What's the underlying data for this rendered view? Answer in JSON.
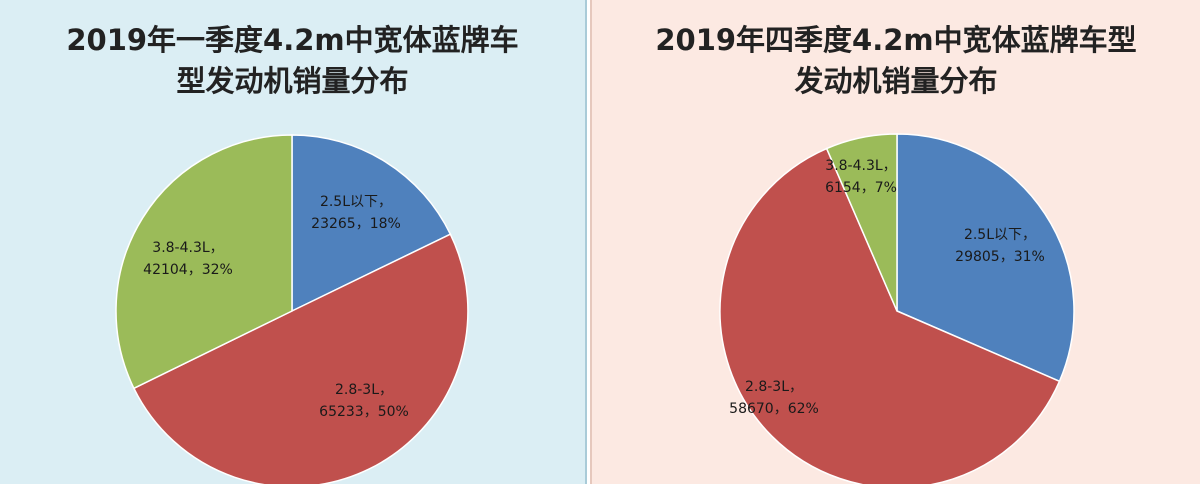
{
  "colors": {
    "blue": "#4f81bd",
    "red": "#c0504d",
    "green": "#9bbb59"
  },
  "chart_data": [
    {
      "type": "pie",
      "title_line1": "2019年一季度4.2m中宽体蓝牌车",
      "title_line2": "型发动机销量分布",
      "slices": [
        {
          "name": "2.5L以下",
          "value": 23265,
          "percent": 18,
          "line1": "2.5L以下，",
          "line2": "23265，18%",
          "color": "#4f81bd"
        },
        {
          "name": "2.8-3L",
          "value": 65233,
          "percent": 50,
          "line1": "2.8-3L，",
          "line2": "65233，50%",
          "color": "#c0504d"
        },
        {
          "name": "3.8-4.3L",
          "value": 42104,
          "percent": 32,
          "line1": "3.8-4.3L，",
          "line2": "42104，32%",
          "color": "#9bbb59"
        }
      ]
    },
    {
      "type": "pie",
      "title_line1": "2019年四季度4.2m中宽体蓝牌车型",
      "title_line2": "发动机销量分布",
      "slices": [
        {
          "name": "2.5L以下",
          "value": 29805,
          "percent": 31,
          "line1": "2.5L以下，",
          "line2": "29805，31%",
          "color": "#4f81bd"
        },
        {
          "name": "2.8-3L",
          "value": 58670,
          "percent": 62,
          "line1": "2.8-3L，",
          "line2": "58670，62%",
          "color": "#c0504d"
        },
        {
          "name": "3.8-4.3L",
          "value": 6154,
          "percent": 7,
          "line1": "3.8-4.3L，",
          "line2": "6154，7%",
          "color": "#9bbb59"
        }
      ]
    }
  ]
}
